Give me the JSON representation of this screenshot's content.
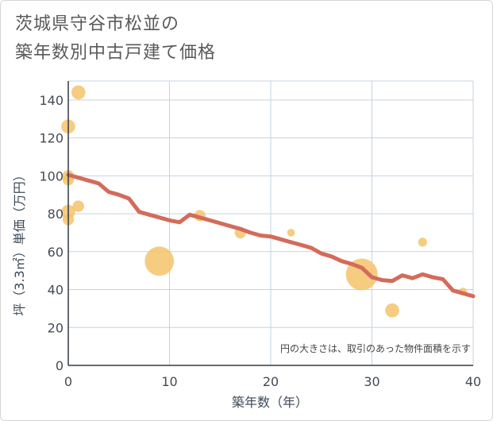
{
  "title_lines": [
    "茨城県守谷市松並の",
    "築年数別中古戸建て価格"
  ],
  "chart_data": {
    "type": "scatter",
    "title": "茨城県守谷市松並の築年数別中古戸建て価格",
    "xlabel": "築年数（年）",
    "ylabel": "坪（3.3㎡）単価（万円）",
    "xlim": [
      0,
      40
    ],
    "ylim": [
      0,
      150
    ],
    "xticks": [
      0,
      10,
      20,
      30,
      40
    ],
    "yticks": [
      0,
      20,
      40,
      60,
      80,
      100,
      120,
      140
    ],
    "grid": true,
    "annotation": "円の大きさは、取引のあった物件面積を示す",
    "colors": {
      "bubble": "#f5c36b",
      "line": "#d46b5a",
      "grid": "#c6d3e0"
    },
    "bubbles": [
      {
        "x": 0,
        "y": 126,
        "size": 3
      },
      {
        "x": 0,
        "y": 100,
        "size": 2
      },
      {
        "x": 0,
        "y": 98,
        "size": 2
      },
      {
        "x": 0,
        "y": 81,
        "size": 3
      },
      {
        "x": 0,
        "y": 77,
        "size": 2
      },
      {
        "x": 1,
        "y": 144,
        "size": 3
      },
      {
        "x": 1,
        "y": 84,
        "size": 2
      },
      {
        "x": 9,
        "y": 55,
        "size": 9
      },
      {
        "x": 13,
        "y": 79,
        "size": 2
      },
      {
        "x": 17,
        "y": 70,
        "size": 2
      },
      {
        "x": 22,
        "y": 70,
        "size": 0.5
      },
      {
        "x": 29,
        "y": 48,
        "size": 10
      },
      {
        "x": 32,
        "y": 29,
        "size": 3
      },
      {
        "x": 35,
        "y": 65,
        "size": 1
      },
      {
        "x": 39,
        "y": 39,
        "size": 0.5
      }
    ],
    "series": [
      {
        "x": [
          0,
          1,
          2,
          3,
          4,
          5,
          6,
          7,
          8,
          9,
          10,
          11,
          12,
          13,
          14,
          15,
          16,
          17,
          18,
          19,
          20,
          21,
          22,
          23,
          24,
          25,
          26,
          27,
          28,
          29,
          30,
          31,
          32,
          33,
          34,
          35,
          36,
          37,
          38,
          39,
          40
        ],
        "values": [
          100.5,
          99,
          97.5,
          96,
          91.5,
          90,
          88,
          81,
          79.5,
          78,
          76.5,
          75.5,
          79.5,
          78,
          76.5,
          75,
          73.5,
          72,
          70,
          68.5,
          68,
          66.5,
          65,
          63.5,
          62,
          59,
          57.5,
          55,
          53.5,
          51.5,
          46.5,
          45,
          44.5,
          47.5,
          46,
          48,
          46.5,
          45.5,
          39.5,
          38,
          36.5
        ]
      }
    ]
  }
}
